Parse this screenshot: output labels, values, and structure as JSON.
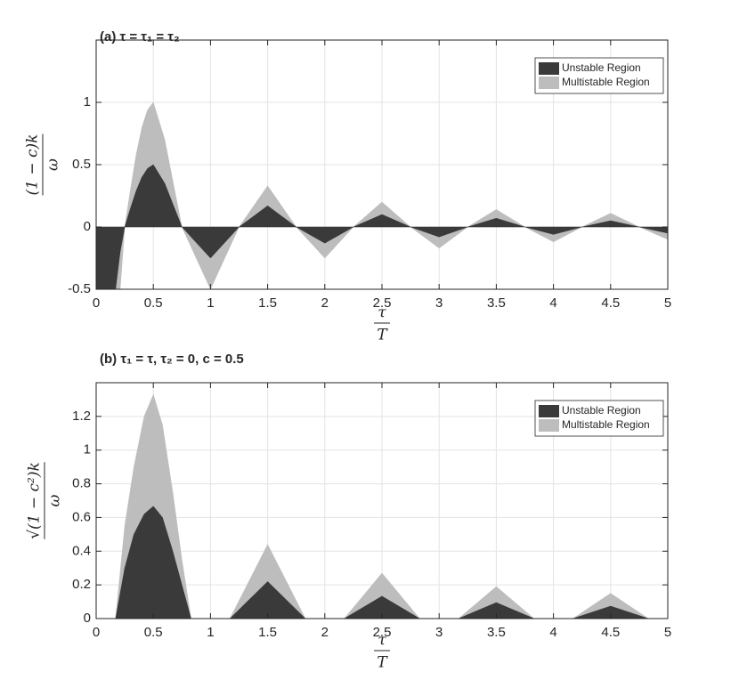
{
  "chart_data": [
    {
      "type": "area",
      "title": "(a) τ = τ₁ = τ₂",
      "xlabel": {
        "numerator": "τ",
        "denominator": "T"
      },
      "ylabel": {
        "numerator": "(1 − c)k",
        "denominator": "ω"
      },
      "x": [
        0,
        0.17,
        0.21,
        0.25,
        0.3,
        0.35,
        0.4,
        0.45,
        0.5,
        0.6,
        0.75,
        1,
        1.25,
        1.5,
        1.75,
        2,
        2.25,
        2.5,
        2.75,
        3,
        3.25,
        3.5,
        3.75,
        4,
        4.25,
        4.5,
        4.75,
        5
      ],
      "series": [
        {
          "name": "Unstable Region",
          "color": "#3a3a3a",
          "values": [
            -0.5,
            -0.5,
            -0.2,
            0,
            0.15,
            0.29,
            0.4,
            0.47,
            0.5,
            0.35,
            0,
            -0.25,
            0,
            0.17,
            0,
            -0.13,
            0,
            0.1,
            0,
            -0.08,
            0,
            0.07,
            0,
            -0.06,
            0,
            0.05,
            0,
            -0.05
          ]
        },
        {
          "name": "Multistable Region",
          "color": "#bdbdbd",
          "values": [
            -0.5,
            -0.5,
            -0.5,
            0,
            0.3,
            0.58,
            0.8,
            0.94,
            1,
            0.7,
            0,
            -0.5,
            0,
            0.33,
            0,
            -0.25,
            0,
            0.2,
            0,
            -0.17,
            0,
            0.14,
            0,
            -0.12,
            0,
            0.11,
            0,
            -0.1
          ]
        }
      ],
      "xlim": [
        0,
        5
      ],
      "ylim": [
        -0.5,
        1.5
      ],
      "xticks": [
        0,
        0.5,
        1,
        1.5,
        2,
        2.5,
        3,
        3.5,
        4,
        4.5,
        5
      ],
      "yticks": [
        -0.5,
        0,
        0.5,
        1
      ],
      "grid": true,
      "legend": "upper-right"
    },
    {
      "type": "area",
      "title": "(b) τ₁ = τ, τ₂ = 0, c = 0.5",
      "xlabel": {
        "numerator": "τ",
        "denominator": "T"
      },
      "ylabel": {
        "numerator": "√(1 − c²)k",
        "denominator": "ω"
      },
      "x": [
        0,
        0.17,
        0.25,
        0.33,
        0.42,
        0.5,
        0.58,
        0.67,
        0.75,
        0.83,
        1.17,
        1.5,
        1.83,
        2.17,
        2.5,
        2.83,
        3.17,
        3.5,
        3.83,
        4.17,
        4.5,
        4.83,
        5
      ],
      "series": [
        {
          "name": "Unstable Region",
          "color": "#3a3a3a",
          "values": [
            0,
            0,
            0.3,
            0.5,
            0.62,
            0.667,
            0.6,
            0.4,
            0.2,
            0,
            0,
            0.22,
            0,
            0,
            0.133,
            0,
            0,
            0.095,
            0,
            0,
            0.074,
            0,
            0
          ]
        },
        {
          "name": "Multistable Region",
          "color": "#bdbdbd",
          "values": [
            0,
            0,
            0.55,
            0.9,
            1.2,
            1.33,
            1.15,
            0.75,
            0.35,
            0,
            0,
            0.44,
            0,
            0,
            0.27,
            0,
            0,
            0.19,
            0,
            0,
            0.15,
            0,
            0
          ]
        }
      ],
      "xlim": [
        0,
        5
      ],
      "ylim": [
        0,
        1.4
      ],
      "xticks": [
        0,
        0.5,
        1,
        1.5,
        2,
        2.5,
        3,
        3.5,
        4,
        4.5,
        5
      ],
      "yticks": [
        0,
        0.2,
        0.4,
        0.6,
        0.8,
        1,
        1.2
      ],
      "grid": true,
      "legend": "upper-right"
    }
  ]
}
